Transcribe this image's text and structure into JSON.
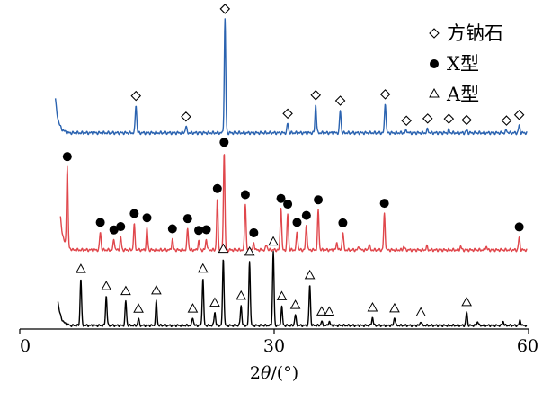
{
  "chart_data": {
    "type": "line",
    "xlabel": "2θ/(°)",
    "ylabel": "",
    "xlim": [
      0,
      60
    ],
    "xticks": [
      "0",
      "30",
      "60"
    ],
    "yaxis_visible": false,
    "grid": false,
    "legend": {
      "placement": "top-right",
      "entries": [
        {
          "marker": "diamond",
          "label": "方钠石"
        },
        {
          "marker": "dot",
          "label": "X型"
        },
        {
          "marker": "triangle",
          "label": "A型"
        }
      ]
    },
    "series": [
      {
        "marker": "diamond",
        "color": "#2b63b0",
        "baseline": 2,
        "start": 4.2,
        "end": 59.8,
        "peaks": [
          [
            13.7,
            15
          ],
          [
            19.6,
            3.5
          ],
          [
            24.2,
            60
          ],
          [
            31.6,
            5
          ],
          [
            34.9,
            15
          ],
          [
            37.8,
            12
          ],
          [
            43.1,
            16
          ],
          [
            45.6,
            1.5
          ],
          [
            48.1,
            2
          ],
          [
            50.6,
            1.5
          ],
          [
            52.7,
            1.5
          ],
          [
            57.4,
            1.5
          ],
          [
            58.9,
            4
          ]
        ],
        "markers_at": [
          13.7,
          19.6,
          24.2,
          31.6,
          34.9,
          37.8,
          43.1,
          45.6,
          48.1,
          50.6,
          52.7,
          57.4,
          58.9
        ]
      },
      {
        "marker": "dot",
        "color": "#e0474c",
        "baseline": 2,
        "start": 4.8,
        "end": 59.8,
        "peaks": [
          [
            5.6,
            45
          ],
          [
            9.5,
            10
          ],
          [
            11.1,
            6
          ],
          [
            11.9,
            7
          ],
          [
            13.5,
            14
          ],
          [
            15.0,
            12
          ],
          [
            18.0,
            6
          ],
          [
            19.8,
            12
          ],
          [
            21.1,
            5
          ],
          [
            22.0,
            6
          ],
          [
            23.3,
            28
          ],
          [
            24.1,
            55
          ],
          [
            26.6,
            26
          ],
          [
            27.6,
            4
          ],
          [
            29.1,
            3
          ],
          [
            30.8,
            24
          ],
          [
            31.6,
            20
          ],
          [
            32.7,
            10
          ],
          [
            33.8,
            14
          ],
          [
            35.2,
            22
          ],
          [
            37.4,
            4
          ],
          [
            38.1,
            10
          ],
          [
            40.0,
            2
          ],
          [
            41.2,
            3
          ],
          [
            43.0,
            20
          ],
          [
            45.3,
            2
          ],
          [
            48.0,
            2
          ],
          [
            52.0,
            2
          ],
          [
            55.0,
            2
          ],
          [
            58.9,
            7
          ]
        ],
        "markers_at": [
          5.6,
          9.5,
          11.1,
          11.9,
          13.5,
          15.0,
          18.0,
          19.8,
          21.1,
          22.0,
          23.3,
          24.1,
          26.6,
          27.6,
          30.8,
          31.6,
          32.7,
          33.8,
          35.2,
          38.1,
          43.0,
          58.9
        ]
      },
      {
        "marker": "triangle",
        "color": "#000000",
        "baseline": 2,
        "start": 4.5,
        "end": 59.8,
        "peaks": [
          [
            7.2,
            35
          ],
          [
            10.2,
            22
          ],
          [
            12.5,
            18
          ],
          [
            14.0,
            5
          ],
          [
            16.1,
            18
          ],
          [
            20.4,
            6
          ],
          [
            21.6,
            35
          ],
          [
            23.0,
            10
          ],
          [
            24.0,
            50
          ],
          [
            26.1,
            15
          ],
          [
            27.1,
            48
          ],
          [
            29.9,
            55
          ],
          [
            30.9,
            14
          ],
          [
            32.5,
            8
          ],
          [
            34.2,
            30
          ],
          [
            35.6,
            3
          ],
          [
            36.5,
            3
          ],
          [
            41.6,
            6
          ],
          [
            44.2,
            6
          ],
          [
            47.3,
            3
          ],
          [
            52.7,
            10
          ],
          [
            54.0,
            3
          ],
          [
            57.0,
            3
          ],
          [
            59.0,
            4
          ]
        ],
        "markers_at": [
          7.2,
          10.2,
          12.5,
          14.0,
          16.1,
          20.4,
          21.6,
          23.0,
          24.0,
          26.1,
          27.1,
          29.9,
          30.9,
          32.5,
          34.2,
          35.6,
          36.5,
          41.6,
          44.2,
          47.3,
          52.7
        ]
      }
    ]
  }
}
